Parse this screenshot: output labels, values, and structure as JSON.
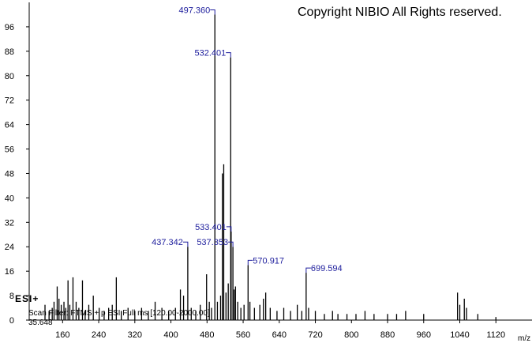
{
  "chart_data": {
    "type": "spectrum",
    "title": "Copyright NIBIO All Rights reserved.",
    "ionization": "ESI+",
    "scan_filter": "Scan Filter: FTMS + p ESI Full ms [120.00-2000.00]",
    "retention_time": "35.648",
    "x_label": "m/z",
    "xlim": [
      86,
      1200
    ],
    "ylim": [
      0,
      104
    ],
    "xticks": [
      160,
      240,
      320,
      400,
      480,
      560,
      640,
      720,
      800,
      880,
      960,
      1040,
      1120
    ],
    "yticks": [
      0,
      8,
      16,
      24,
      32,
      40,
      48,
      56,
      64,
      72,
      80,
      88,
      96
    ],
    "color": "#000000",
    "label_color": "#1c1c9c",
    "series": [
      {
        "x": [
          121,
          130,
          137,
          141,
          148,
          152,
          157,
          163,
          167,
          172,
          176,
          183,
          190,
          196,
          204,
          210,
          218,
          228,
          241,
          252,
          262,
          270,
          279,
          290,
          305,
          320,
          335,
          350,
          365,
          380,
          395,
          410,
          421,
          428,
          437.342,
          445,
          455,
          465,
          479,
          485,
          490,
          497.36,
          503,
          510,
          514,
          517,
          522,
          527,
          532.401,
          533.401,
          537.353,
          540,
          543,
          548,
          555,
          562,
          570.917,
          575,
          585,
          597,
          605,
          610,
          620,
          635,
          650,
          665,
          680,
          690,
          699.594,
          705,
          720,
          740,
          758,
          770,
          790,
          810,
          830,
          850,
          880,
          900,
          920,
          960,
          1035,
          1040,
          1050,
          1055,
          1080,
          1120
        ],
        "values": [
          5,
          3,
          4,
          6,
          11,
          7,
          5,
          6,
          4,
          13,
          5,
          14,
          6,
          4,
          13,
          3,
          5,
          8,
          4,
          3,
          4,
          5,
          14,
          3,
          4,
          3,
          4,
          3,
          6,
          4,
          3,
          4,
          10,
          8,
          24,
          4,
          3,
          5,
          15,
          6,
          4,
          100,
          6,
          8,
          48,
          51,
          9,
          12,
          86,
          29,
          24,
          10,
          11,
          6,
          4,
          5,
          18,
          6,
          4,
          5,
          7,
          9,
          4,
          3,
          4,
          3,
          5,
          3,
          15.5,
          4,
          3,
          2,
          3,
          2,
          2,
          2,
          3,
          2,
          2,
          2,
          3,
          2,
          9,
          5,
          7,
          4,
          2,
          1
        ],
        "x_labels": [
          null,
          null,
          null,
          null,
          null,
          null,
          null,
          null,
          null,
          null,
          null,
          null,
          null,
          null,
          null,
          null,
          null,
          null,
          null,
          null,
          null,
          null,
          null,
          null,
          null,
          null,
          null,
          null,
          null,
          null,
          null,
          null,
          null,
          null,
          "437.342",
          null,
          null,
          null,
          null,
          null,
          null,
          "497.360",
          null,
          null,
          null,
          null,
          null,
          null,
          "532.401",
          "533.401",
          "537.353",
          null,
          null,
          null,
          null,
          null,
          "570.917",
          null,
          null,
          null,
          null,
          null,
          null,
          null,
          null,
          null,
          null,
          null,
          "699.594",
          null,
          null,
          null,
          null,
          null,
          null,
          null,
          null,
          null,
          null,
          null,
          null,
          null,
          null,
          null,
          null,
          null,
          null,
          null
        ]
      }
    ]
  }
}
